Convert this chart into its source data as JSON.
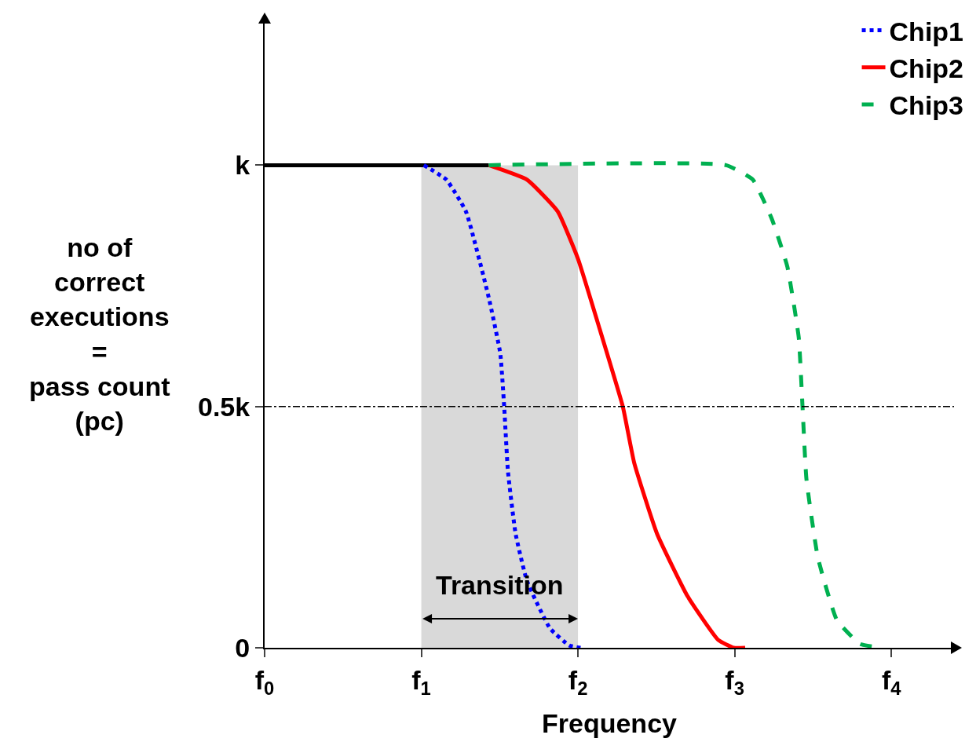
{
  "chart_data": {
    "type": "line",
    "xlabel": "Frequency",
    "ylabel": "no of\ncorrect\nexecutions\n=\npass count\n(pc)",
    "xlim": [
      0,
      4.4
    ],
    "ylim": [
      0,
      1.3
    ],
    "xticks": [
      {
        "value": 0,
        "label": "f$_{0}$"
      },
      {
        "value": 1,
        "label": "f$_{1}$"
      },
      {
        "value": 2,
        "label": "f$_{2}$"
      },
      {
        "value": 3,
        "label": "f$_{3}$"
      },
      {
        "value": 4,
        "label": "f$_{4}$"
      }
    ],
    "yticks": [
      {
        "value": 0,
        "label": "0"
      },
      {
        "value": 0.5,
        "label": "0.5k"
      },
      {
        "value": 1,
        "label": "k"
      }
    ],
    "grid": false,
    "legend": "top right",
    "marker": "none",
    "series": [
      {
        "color": "#000000",
        "line_style": "solid",
        "x": [
          0,
          1.431
        ],
        "values": [
          1,
          1
        ]
      },
      {
        "name": "Chip1",
        "color": "#0000ff",
        "line_style": "dotted",
        "x": [
          1.016,
          1.16,
          1.285,
          1.431,
          1.504,
          1.529,
          1.553,
          1.602,
          1.675,
          1.822,
          1.944,
          2.017
        ],
        "values": [
          1,
          0.97,
          0.904,
          0.725,
          0.61,
          0.5,
          0.366,
          0.236,
          0.138,
          0.04,
          0.005,
          0
        ]
      },
      {
        "name": "Chip2",
        "color": "#ff0000",
        "line_style": "solid",
        "x": [
          1.431,
          1.675,
          1.871,
          2.0,
          2.139,
          2.286,
          2.359,
          2.505,
          2.701,
          2.896,
          2.994,
          3.067
        ],
        "values": [
          1,
          0.97,
          0.904,
          0.806,
          0.66,
          0.5,
          0.383,
          0.236,
          0.106,
          0.016,
          0,
          0
        ]
      },
      {
        "name": "Chip3",
        "color": "#00b050",
        "line_style": "dashed",
        "x": [
          1.431,
          2.945,
          3.116,
          3.238,
          3.336,
          3.409,
          3.433,
          3.458,
          3.531,
          3.653,
          3.8,
          3.946
        ],
        "values": [
          1,
          1,
          0.97,
          0.888,
          0.79,
          0.643,
          0.5,
          0.35,
          0.187,
          0.057,
          0.008,
          0
        ]
      }
    ],
    "ref_lines": [
      {
        "axis": "y",
        "value": 0.5,
        "line_style": "dashdot",
        "color": "#000000"
      }
    ],
    "bands": [
      {
        "axis": "x",
        "from": 1,
        "to": 2,
        "label": "Transition",
        "color": "#d9d9d9"
      }
    ]
  }
}
